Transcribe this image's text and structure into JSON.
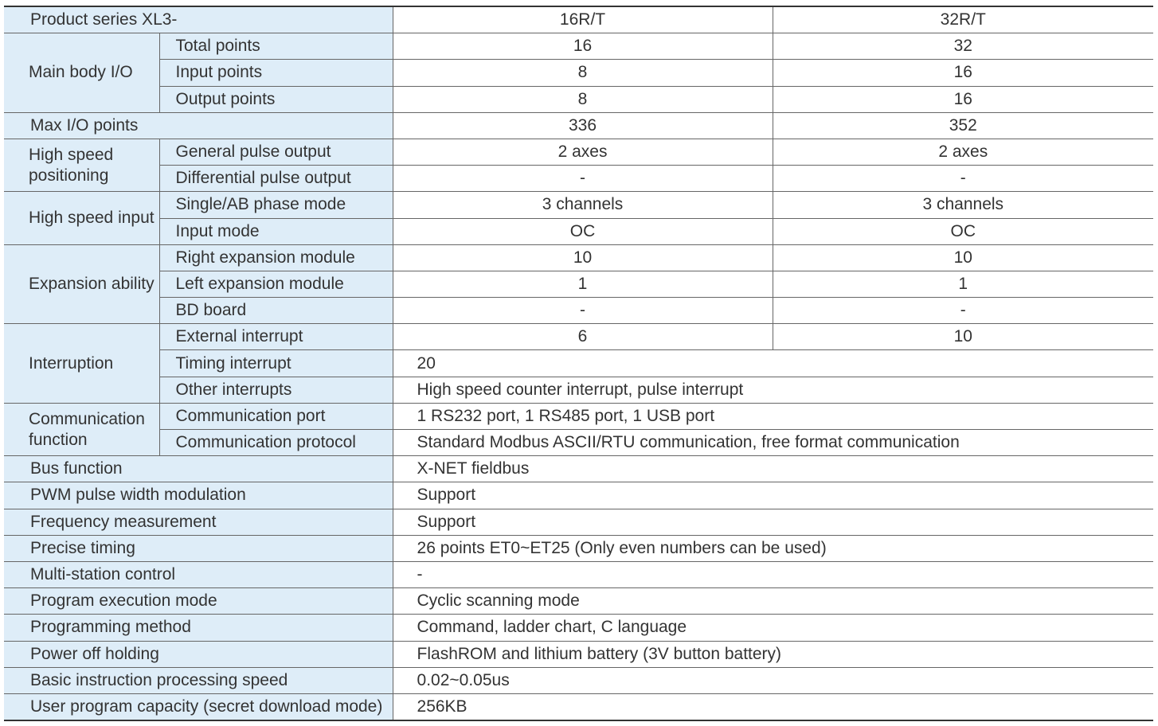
{
  "header": {
    "label": "Product series XL3-",
    "models": [
      "16R/T",
      "32R/T"
    ]
  },
  "groups": [
    {
      "label": "Main body I/O",
      "rows": [
        {
          "label": "Total points",
          "values": [
            "16",
            "32"
          ]
        },
        {
          "label": "Input points",
          "values": [
            "8",
            "16"
          ]
        },
        {
          "label": "Output points",
          "values": [
            "8",
            "16"
          ]
        }
      ]
    },
    {
      "label": "Max I/O points",
      "values": [
        "336",
        "352"
      ]
    },
    {
      "label": "High speed positioning",
      "rows": [
        {
          "label": "General pulse output",
          "values": [
            "2 axes",
            "2 axes"
          ]
        },
        {
          "label": "Differential pulse output",
          "values": [
            "-",
            "-"
          ]
        }
      ]
    },
    {
      "label": "High speed input",
      "rows": [
        {
          "label": "Single/AB phase mode",
          "values": [
            "3 channels",
            "3 channels"
          ]
        },
        {
          "label": "Input mode",
          "values": [
            "OC",
            "OC"
          ]
        }
      ]
    },
    {
      "label": "Expansion ability",
      "rows": [
        {
          "label": "Right expansion module",
          "values": [
            "10",
            "10"
          ]
        },
        {
          "label": "Left expansion module",
          "values": [
            "1",
            "1"
          ]
        },
        {
          "label": "BD board",
          "values": [
            "-",
            "-"
          ]
        }
      ]
    },
    {
      "label": "Interruption",
      "rows": [
        {
          "label": "External interrupt",
          "values": [
            "6",
            "10"
          ]
        },
        {
          "label": "Timing interrupt",
          "value": "20"
        },
        {
          "label": "Other interrupts",
          "value": "High speed counter interrupt, pulse interrupt"
        }
      ]
    },
    {
      "label": "Communication function",
      "rows": [
        {
          "label": "Communication port",
          "value": "1 RS232 port, 1 RS485 port, 1 USB port"
        },
        {
          "label": "Communication protocol",
          "value": "Standard Modbus ASCII/RTU communication, free format communication"
        }
      ]
    },
    {
      "label": "Bus function",
      "value": "X-NET fieldbus"
    },
    {
      "label": "PWM pulse width modulation",
      "value": "Support"
    },
    {
      "label": "Frequency measurement",
      "value": "Support"
    },
    {
      "label": "Precise timing",
      "value": "26 points ET0~ET25 (Only even numbers can be used)"
    },
    {
      "label": "Multi-station control",
      "value": "-"
    },
    {
      "label": "Program execution mode",
      "value": "Cyclic scanning mode"
    },
    {
      "label": "Programming method",
      "value": "Command, ladder chart, C language"
    },
    {
      "label": "Power off holding",
      "value": "FlashROM and lithium battery (3V button battery)"
    },
    {
      "label": "Basic instruction processing speed",
      "value": "0.02~0.05us"
    },
    {
      "label": "User program capacity (secret download mode)",
      "value": "256KB"
    }
  ]
}
